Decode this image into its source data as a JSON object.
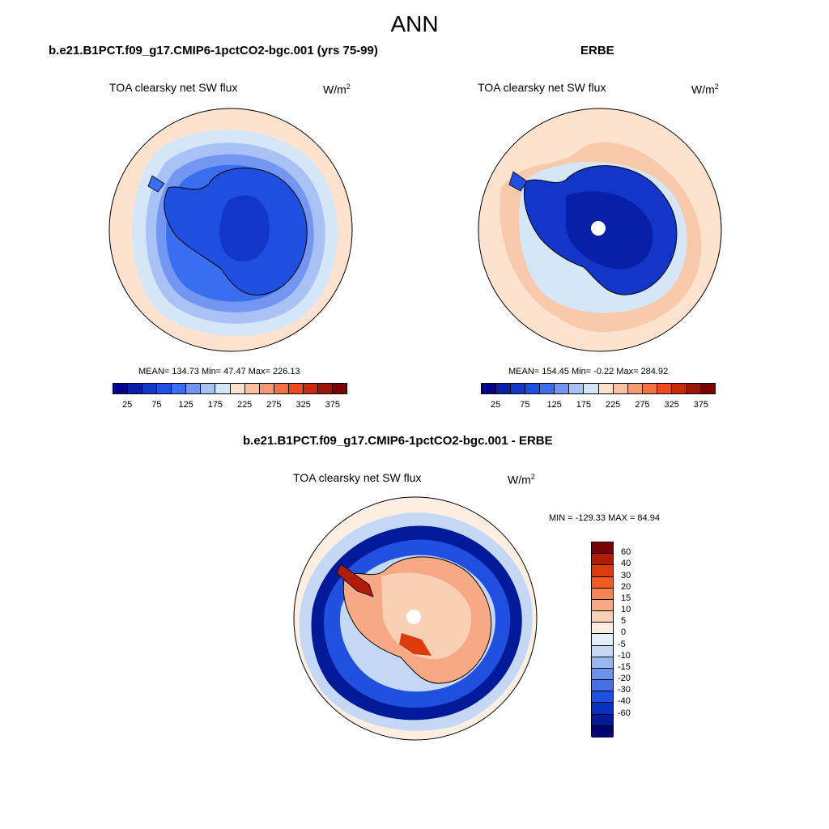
{
  "main_title": "ANN",
  "panels": {
    "model": {
      "title": "b.e21.B1PCT.f09_g17.CMIP6-1pctCO2-bgc.001 (yrs 75-99)",
      "label": "TOA clearsky net SW flux",
      "units": "W/m",
      "units_exp": "2",
      "stats": "MEAN= 134.73  Min=  47.47  Max= 226.13"
    },
    "obs": {
      "title": "ERBE",
      "label": "TOA clearsky net SW flux",
      "units": "W/m",
      "units_exp": "2",
      "stats": "MEAN= 154.45  Min=  -0.22  Max= 284.92"
    },
    "diff": {
      "title": "b.e21.B1PCT.f09_g17.CMIP6-1pctCO2-bgc.001 - ERBE",
      "label": "TOA clearsky net SW flux",
      "units": "W/m",
      "units_exp": "2",
      "stats": "MIN = -129.33 MAX =  84.94"
    }
  },
  "abs_colorbar": {
    "colors": [
      "#00008a",
      "#0a1fa8",
      "#1236c8",
      "#1f4fe0",
      "#3a6ef0",
      "#7396f2",
      "#a9c2f5",
      "#d6e6f9",
      "#fde3cf",
      "#f8c2a3",
      "#f49b74",
      "#f07246",
      "#ee4a1c",
      "#c82a0c",
      "#9c1608",
      "#780000"
    ],
    "labels": [
      "25",
      "75",
      "125",
      "175",
      "225",
      "275",
      "325",
      "375"
    ]
  },
  "diff_colorbar": {
    "colors": [
      "#780000",
      "#b01c06",
      "#dd3a0e",
      "#f25c22",
      "#f58455",
      "#f7a884",
      "#fad0b4",
      "#fdeee2",
      "#e5eefb",
      "#c4d8f6",
      "#98b6f0",
      "#6d92ec",
      "#4470e8",
      "#2150e0",
      "#0a30c0",
      "#001a9a",
      "#000070"
    ],
    "labels": [
      "60",
      "40",
      "30",
      "20",
      "15",
      "10",
      "5",
      "0",
      "-5",
      "-10",
      "-15",
      "-20",
      "-30",
      "-40",
      "-60"
    ]
  },
  "map_colors": {
    "ocean_mid": "#fde3cf",
    "land_border": "#000000"
  }
}
